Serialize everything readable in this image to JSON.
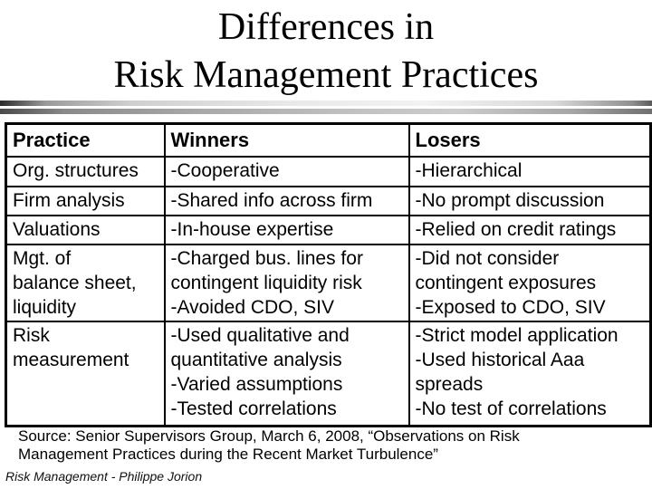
{
  "slide": {
    "title": "Differences in\nRisk Management Practices",
    "source_note": "Source: Senior Supervisors Group, March 6, 2008, “Observations on Risk Management Practices during the Recent Market Turbulence”",
    "footer": "Risk Management - Philippe Jorion"
  },
  "table": {
    "headers": [
      "Practice",
      "Winners",
      "Losers"
    ],
    "rows": [
      {
        "practice": "Org. structures",
        "winners": "-Cooperative",
        "losers": "-Hierarchical"
      },
      {
        "practice": "Firm analysis",
        "winners": "-Shared info across firm",
        "losers": "-No prompt discussion"
      },
      {
        "practice": "Valuations",
        "winners": "-In-house expertise",
        "losers": "-Relied on credit ratings"
      },
      {
        "practice": "Mgt. of\nbalance sheet,\nliquidity",
        "winners": "-Charged bus. lines for contingent liquidity risk\n-Avoided CDO, SIV",
        "losers": "-Did not consider contingent exposures\n-Exposed to CDO, SIV"
      },
      {
        "practice": "Risk\nmeasurement",
        "winners": "-Used qualitative and quantitative analysis\n-Varied assumptions\n-Tested correlations",
        "losers": "-Strict model application\n-Used historical Aaa spreads\n-No test of correlations"
      }
    ]
  },
  "colors": {
    "background": "#ffffff",
    "text": "#000000",
    "table_border": "#000000",
    "divider_dark": "#2b2b2b",
    "divider_light": "#f2f2f2"
  }
}
